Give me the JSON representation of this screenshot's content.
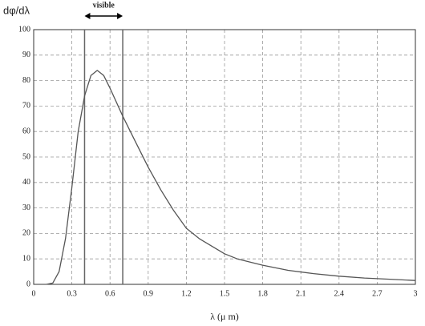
{
  "chart_data": {
    "type": "line",
    "ylabel": "dφ/dλ",
    "xlabel": "λ (μ m)",
    "x": [
      0.1,
      0.15,
      0.2,
      0.25,
      0.3,
      0.35,
      0.4,
      0.45,
      0.5,
      0.55,
      0.6,
      0.7,
      0.8,
      0.9,
      1.0,
      1.1,
      1.2,
      1.3,
      1.4,
      1.5,
      1.6,
      1.8,
      2.0,
      2.2,
      2.4,
      2.6,
      2.8,
      3.0
    ],
    "values": [
      0,
      0.5,
      5,
      18,
      38,
      60,
      74,
      82,
      84,
      82,
      77,
      66,
      56,
      46,
      37,
      29,
      22,
      18,
      15,
      12,
      10,
      7.5,
      5.5,
      4.2,
      3.2,
      2.5,
      2,
      1.5
    ],
    "color": "#555555",
    "annotation": {
      "text": "visible",
      "x": [
        0.4,
        0.7
      ]
    },
    "xlim": [
      0,
      3
    ],
    "xticks": [
      0,
      0.3,
      0.6,
      0.9,
      1.2,
      1.5,
      1.8,
      2.1,
      2.4,
      2.7,
      3
    ],
    "ylim": [
      0,
      100
    ],
    "yticks": [
      0,
      10,
      20,
      30,
      40,
      50,
      60,
      70,
      80,
      90,
      100
    ],
    "grid": true
  }
}
